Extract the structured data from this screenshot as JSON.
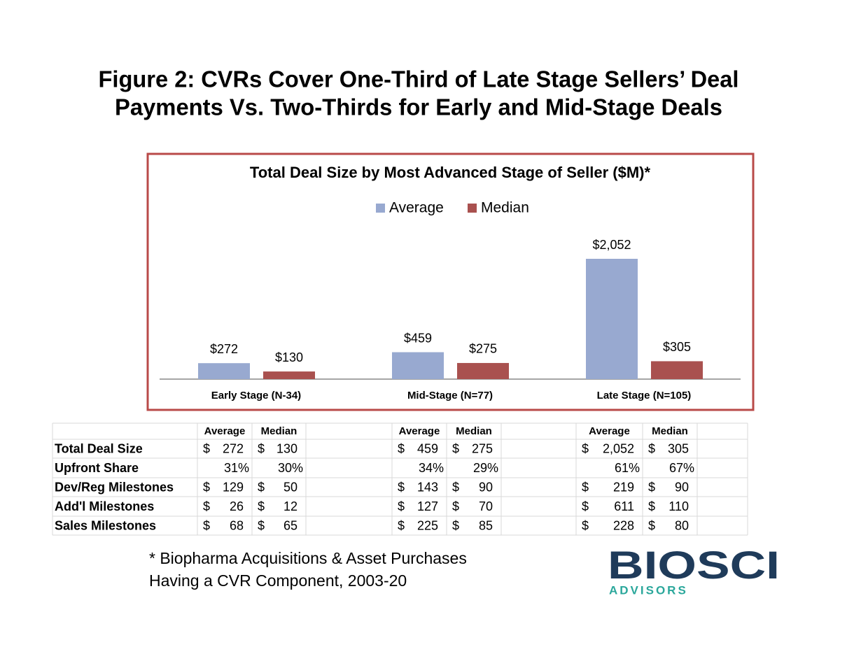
{
  "header": {
    "title": [
      "Figure 2:  CVRs Cover One-Third of Late Stage Sellers’ Deal",
      "Payments Vs. Two-Thirds for Early and Mid-Stage Deals"
    ]
  },
  "chart_data": {
    "type": "bar",
    "title": "Total Deal Size by Most Advanced Stage of Seller ($M)*",
    "categories": [
      "Early Stage (N-34)",
      "Mid-Stage (N=77)",
      "Late Stage (N=105)"
    ],
    "series": [
      {
        "name": "Average",
        "color": "#98a9d0",
        "values": [
          272,
          459,
          2052
        ],
        "value_labels": [
          "$272",
          "$459",
          "$2,052"
        ]
      },
      {
        "name": "Median",
        "color": "#a9514f",
        "values": [
          130,
          275,
          305
        ],
        "value_labels": [
          "$130",
          "$275",
          "$305"
        ]
      }
    ],
    "legend": "top"
  },
  "table": {
    "column_headers": [
      [
        "Average",
        "Median"
      ],
      [
        "Average",
        "Median"
      ],
      [
        "Average",
        "Median"
      ]
    ],
    "rows": [
      {
        "label": "Total Deal Size",
        "groups": [
          [
            [
              "$",
              "272"
            ],
            [
              "$",
              "130"
            ]
          ],
          [
            [
              "$",
              "459"
            ],
            [
              "$",
              "275"
            ]
          ],
          [
            [
              "$",
              "2,052"
            ],
            [
              "$",
              "305"
            ]
          ]
        ]
      },
      {
        "label": "Upfront Share",
        "groups": [
          [
            "31%",
            "30%"
          ],
          [
            "34%",
            "29%"
          ],
          [
            "61%",
            "67%"
          ]
        ]
      },
      {
        "label": "Dev/Reg Milestones",
        "groups": [
          [
            [
              "$",
              "129"
            ],
            [
              "$",
              "50"
            ]
          ],
          [
            [
              "$",
              "143"
            ],
            [
              "$",
              "90"
            ]
          ],
          [
            [
              "$",
              "219"
            ],
            [
              "$",
              "90"
            ]
          ]
        ]
      },
      {
        "label": "Add'l Milestones",
        "groups": [
          [
            [
              "$",
              "26"
            ],
            [
              "$",
              "12"
            ]
          ],
          [
            [
              "$",
              "127"
            ],
            [
              "$",
              "70"
            ]
          ],
          [
            [
              "$",
              "611"
            ],
            [
              "$",
              "110"
            ]
          ]
        ]
      },
      {
        "label": "Sales Milestones",
        "groups": [
          [
            [
              "$",
              "68"
            ],
            [
              "$",
              "65"
            ]
          ],
          [
            [
              "$",
              "225"
            ],
            [
              "$",
              "85"
            ]
          ],
          [
            [
              "$",
              "228"
            ],
            [
              "$",
              "80"
            ]
          ]
        ]
      }
    ]
  },
  "footnote": [
    "* Biopharma Acquisitions & Asset Purchases",
    "Having a CVR Component, 2003-20"
  ],
  "logo": {
    "name": "BIOSCI",
    "tagline": "ADVISORS"
  }
}
